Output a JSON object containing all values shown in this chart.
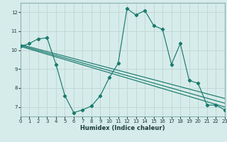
{
  "xlabel": "Humidex (Indice chaleur)",
  "bg_color": "#d6ecea",
  "grid_color": "#c2d8d6",
  "line_color": "#1a7a6e",
  "spine_color": "#8ab0b0",
  "xlim": [
    0,
    23
  ],
  "ylim": [
    6.5,
    12.5
  ],
  "yticks": [
    7,
    8,
    9,
    10,
    11,
    12
  ],
  "xticks": [
    0,
    1,
    2,
    3,
    4,
    5,
    6,
    7,
    8,
    9,
    10,
    11,
    12,
    13,
    14,
    15,
    16,
    17,
    18,
    19,
    20,
    21,
    22,
    23
  ],
  "series1_x": [
    0,
    1,
    2,
    3,
    4,
    5,
    6,
    7,
    8,
    9,
    10,
    11,
    12,
    13,
    14,
    15,
    16,
    17,
    18,
    19,
    20,
    21,
    22,
    23
  ],
  "series1_y": [
    10.2,
    10.35,
    10.6,
    10.65,
    9.25,
    7.6,
    6.7,
    6.85,
    7.05,
    7.6,
    8.55,
    9.3,
    12.2,
    11.85,
    12.1,
    11.3,
    11.1,
    9.25,
    10.35,
    8.4,
    8.25,
    7.1,
    7.1,
    6.85
  ],
  "series2_x": [
    0,
    23
  ],
  "series2_y": [
    10.2,
    7.0
  ],
  "series3_x": [
    0,
    23
  ],
  "series3_y": [
    10.25,
    7.2
  ],
  "series4_x": [
    0,
    23
  ],
  "series4_y": [
    10.3,
    7.45
  ]
}
